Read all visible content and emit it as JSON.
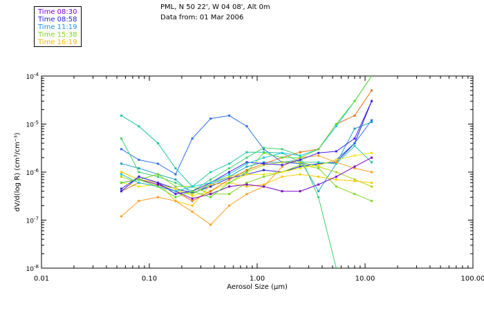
{
  "header": {
    "location": "PML, N 50 22', W 04 08', Alt 0m",
    "date": "Data from: 01 Mar 2006"
  },
  "legend": [
    {
      "label": "Time 08:30",
      "color": "#7a00c8"
    },
    {
      "label": "Time 08:58",
      "color": "#1d1dd6"
    },
    {
      "label": "Time 11:19",
      "color": "#1e90e6"
    },
    {
      "label": "Time 15:38",
      "color": "#7ed61e"
    },
    {
      "label": "Time 16:19",
      "color": "#f5b400"
    }
  ],
  "chart_data": {
    "type": "line",
    "title": "",
    "xlabel": "Aerosol Size (µm)",
    "ylabel": "dV/d(log R) (cm³/cm⁻³)",
    "xscale": "log",
    "yscale": "log",
    "xlim": [
      0.01,
      100
    ],
    "ylim": [
      1e-08,
      0.0001
    ],
    "x_ticks": [
      "0.01",
      "0.10",
      "1.00",
      "10.00",
      "100.00"
    ],
    "y_ticks": [
      {
        "base": "10",
        "exp": "-8",
        "value": 1e-08
      },
      {
        "base": "10",
        "exp": "-7",
        "value": 1e-07
      },
      {
        "base": "10",
        "exp": "-6",
        "value": 1e-06
      },
      {
        "base": "10",
        "exp": "-5",
        "value": 1e-05
      },
      {
        "base": "10",
        "exp": "-4",
        "value": 0.0001
      }
    ],
    "x": [
      0.055,
      0.08,
      0.12,
      0.175,
      0.25,
      0.37,
      0.55,
      0.8,
      1.15,
      1.7,
      2.5,
      3.7,
      5.4,
      8.0,
      11.5
    ],
    "series": [
      {
        "name": "s1",
        "color": "#1d1dd6",
        "values": [
          4.5e-07,
          8e-07,
          6e-07,
          4.5e-07,
          3.7e-07,
          5e-07,
          7.5e-07,
          9e-07,
          1.1e-06,
          1e-06,
          1.3e-06,
          1.5e-06,
          1.6e-06,
          4e-06,
          3e-05
        ]
      },
      {
        "name": "s2",
        "color": "#2a6fe8",
        "values": [
          3e-06,
          1.8e-06,
          1.5e-06,
          9e-07,
          5e-06,
          1.3e-05,
          1.5e-05,
          9e-06,
          3e-06,
          1.6e-06,
          1.5e-06,
          1.4e-06,
          1.8e-06,
          4e-06,
          1.2e-05
        ]
      },
      {
        "name": "s3",
        "color": "#1e9fc8",
        "values": [
          1.5e-06,
          1.2e-06,
          9e-07,
          7e-07,
          3.5e-07,
          5.5e-07,
          8e-07,
          1.3e-06,
          1.6e-06,
          1.6e-06,
          1.8e-06,
          4e-07,
          1.5e-06,
          8e-06,
          1.1e-05
        ]
      },
      {
        "name": "s4",
        "color": "#1ec8a0",
        "values": [
          1.5e-05,
          9e-06,
          4e-06,
          1.2e-06,
          5e-07,
          1e-06,
          1.5e-06,
          2.6e-06,
          2.6e-06,
          2.5e-06,
          1.6e-06,
          1.6e-06,
          1.5e-06,
          3.5e-06,
          1.6e-06
        ]
      },
      {
        "name": "s5",
        "color": "#3cd26e",
        "values": [
          5e-06,
          1e-06,
          8e-07,
          6e-07,
          4e-07,
          7e-07,
          1.2e-06,
          2e-06,
          3.2e-06,
          3e-06,
          2.2e-06,
          3e-07,
          1e-08,
          null,
          null
        ]
      },
      {
        "name": "s6",
        "color": "#7ed61e",
        "values": [
          1e-06,
          7e-07,
          9e-07,
          5e-07,
          5e-07,
          3.5e-07,
          3.5e-07,
          6e-07,
          8e-07,
          1e-06,
          1.4e-06,
          1.2e-06,
          5e-07,
          3.5e-07,
          2.5e-07
        ]
      },
      {
        "name": "s7",
        "color": "#b4d214",
        "values": [
          8e-07,
          6e-07,
          5e-07,
          4e-07,
          3.5e-07,
          6e-07,
          8e-07,
          1e-06,
          1.4e-06,
          1.6e-06,
          1.6e-06,
          1.3e-06,
          1e-06,
          7e-07,
          5e-07
        ]
      },
      {
        "name": "s8",
        "color": "#f5e600",
        "values": [
          6e-07,
          5e-07,
          5.5e-07,
          4.5e-07,
          3.2e-07,
          4e-07,
          6e-07,
          9e-07,
          9e-07,
          1e-06,
          1.2e-06,
          1.4e-06,
          1.8e-06,
          2.2e-06,
          2.5e-06
        ]
      },
      {
        "name": "s9",
        "color": "#ffc800",
        "values": [
          1e-06,
          7e-07,
          6e-07,
          2.5e-07,
          2e-07,
          5.5e-07,
          6e-07,
          5e-07,
          5.5e-07,
          8e-07,
          9e-07,
          8e-07,
          7e-07,
          6.5e-07,
          6e-07
        ]
      },
      {
        "name": "s10",
        "color": "#ff9a1e",
        "values": [
          1.2e-07,
          2.5e-07,
          3e-07,
          2.5e-07,
          1.5e-07,
          8e-08,
          2e-07,
          3.5e-07,
          5e-07,
          1.3e-06,
          2e-06,
          2.2e-06,
          1.6e-06,
          1.2e-06,
          1e-06
        ]
      },
      {
        "name": "s11",
        "color": "#e86e14",
        "values": [
          4e-07,
          6e-07,
          5e-07,
          4e-07,
          2.5e-07,
          4e-07,
          7e-07,
          1.1e-06,
          1.5e-06,
          2e-06,
          2.6e-06,
          3e-06,
          1e-05,
          1.5e-05,
          5e-05
        ]
      },
      {
        "name": "s12",
        "color": "#7a00c8",
        "values": [
          6e-07,
          7e-07,
          5.5e-07,
          4e-07,
          2.8e-07,
          3.5e-07,
          5e-07,
          5.5e-07,
          5e-07,
          4e-07,
          4e-07,
          5.5e-07,
          8e-07,
          1.3e-06,
          2e-06
        ]
      },
      {
        "name": "s13",
        "color": "#3c1ee6",
        "values": [
          4e-07,
          8e-07,
          6e-07,
          3.5e-07,
          4e-07,
          6e-07,
          1e-06,
          1.6e-06,
          1.5e-06,
          1.4e-06,
          1.8e-06,
          2.5e-06,
          2.7e-06,
          5e-06,
          3e-05
        ]
      },
      {
        "name": "s14",
        "color": "#19c8e6",
        "values": [
          9e-07,
          6e-07,
          5e-07,
          4e-07,
          5e-07,
          6e-07,
          9e-07,
          1.5e-06,
          2e-06,
          2.5e-06,
          2.2e-06,
          3e-06,
          9e-06,
          3e-05,
          0.0001
        ]
      },
      {
        "name": "s15",
        "color": "#5adc32",
        "values": [
          6e-07,
          7e-07,
          5e-07,
          3e-07,
          4e-07,
          3e-07,
          6e-07,
          1e-06,
          2.5e-06,
          2e-06,
          2e-06,
          3e-06,
          1e-05,
          3e-05,
          0.0001
        ]
      }
    ]
  }
}
